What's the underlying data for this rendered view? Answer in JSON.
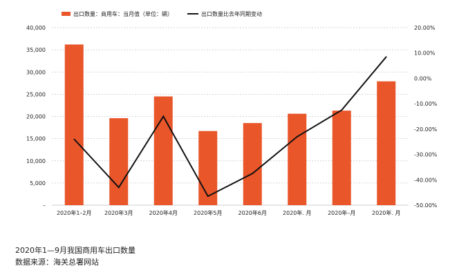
{
  "chart_data": {
    "type": "bar+line",
    "categories": [
      "2020年1–2月",
      "2020年3月",
      "2020年4月",
      "2020年5月",
      "2020年6月",
      "2020年. 月",
      "2020年–月",
      "2020年. 月"
    ],
    "series": [
      {
        "name": "出口数量：商用车：当月值（单位：辆）",
        "type": "bar",
        "axis": "left",
        "color": "#e8562a",
        "values": [
          36200,
          19600,
          24500,
          16700,
          18500,
          20600,
          21300,
          27900
        ]
      },
      {
        "name": "出口数量比去年同期变动",
        "type": "line",
        "axis": "right",
        "color": "#111111",
        "values": [
          -24.0,
          -43.0,
          -15.0,
          -46.5,
          -37.5,
          -23.0,
          -12.5,
          8.5
        ]
      }
    ],
    "left_axis": {
      "range": [
        0,
        40000
      ],
      "tick_labels": [
        "–",
        "5,000",
        "10,000",
        "15,000",
        "20,000",
        "25,000",
        "30,000",
        "35,000",
        "40,000"
      ]
    },
    "right_axis": {
      "range": [
        -50,
        20
      ],
      "tick_labels": [
        "-50.00%",
        "-40.00%",
        "-30.00%",
        "-20.00%",
        "-10.00%",
        "0.00%",
        "10.00%",
        "20.00%"
      ]
    },
    "grid": "horizontal dashed",
    "legend_position": "top-left"
  },
  "caption": {
    "title": "2020年1—9月我国商用车出口数量",
    "source": "数据来源：海关总署网站"
  }
}
